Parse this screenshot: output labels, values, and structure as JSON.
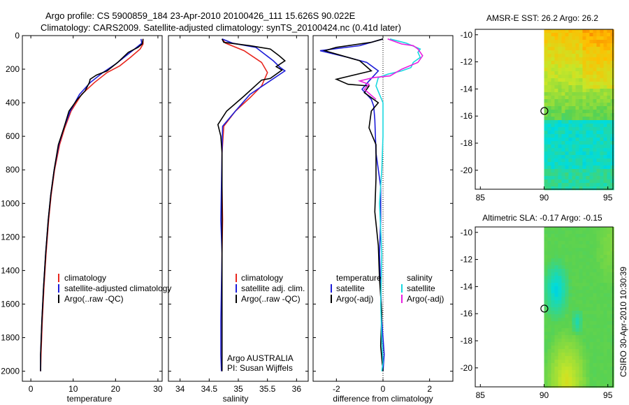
{
  "figure": {
    "title_line1": "Argo profile: CS 5900859_184 23-Apr-2010 20100426_111 15.626S 90.022E",
    "title_line2": "Climatology: CARS2009. Satellite-adjusted climatology: synTS_20100424.nc (0.41d later)",
    "side_text": "CSIRO 30-Apr-2010 10:30:39"
  },
  "colors": {
    "climatology": "#e8261e",
    "satellite": "#1c1cd8",
    "argo": "#000000",
    "sal_satellite": "#1ad8e0",
    "sal_argo": "#e81ee0"
  },
  "chart_data": [
    {
      "type": "line",
      "id": "temperature",
      "xlabel": "temperature",
      "ylabel": "",
      "xlim": [
        -2,
        31
      ],
      "ylim": [
        2060,
        0
      ],
      "xticks": [
        0,
        10,
        20,
        30
      ],
      "yticks": [
        0,
        200,
        400,
        600,
        800,
        1000,
        1200,
        1400,
        1600,
        1800,
        2000
      ],
      "legend": [
        "climatology",
        "satellite-adjusted climatology",
        "Argo(..raw -QC)"
      ],
      "series": [
        {
          "name": "climatology",
          "color_key": "climatology",
          "points": [
            [
              26.5,
              20
            ],
            [
              26.5,
              50
            ],
            [
              25.8,
              80
            ],
            [
              23.5,
              130
            ],
            [
              21,
              180
            ],
            [
              18,
              220
            ],
            [
              15,
              280
            ],
            [
              12,
              350
            ],
            [
              9.5,
              450
            ],
            [
              8,
              550
            ],
            [
              6.8,
              650
            ],
            [
              5.6,
              800
            ],
            [
              4.8,
              950
            ],
            [
              4.2,
              1100
            ],
            [
              3.6,
              1300
            ],
            [
              3.1,
              1500
            ],
            [
              2.7,
              1700
            ],
            [
              2.4,
              1900
            ],
            [
              2.3,
              2000
            ]
          ]
        },
        {
          "name": "satellite-adjusted climatology",
          "color_key": "satellite",
          "points": [
            [
              26,
              20
            ],
            [
              26.2,
              45
            ],
            [
              25,
              70
            ],
            [
              22.5,
              120
            ],
            [
              20,
              170
            ],
            [
              17,
              220
            ],
            [
              14,
              280
            ],
            [
              11.5,
              350
            ],
            [
              9.3,
              450
            ],
            [
              7.8,
              550
            ],
            [
              6.6,
              650
            ],
            [
              5.5,
              800
            ],
            [
              4.7,
              950
            ],
            [
              4.1,
              1100
            ],
            [
              3.5,
              1300
            ],
            [
              3,
              1500
            ],
            [
              2.6,
              1700
            ],
            [
              2.3,
              1900
            ],
            [
              2.3,
              2000
            ]
          ]
        },
        {
          "name": "Argo(..raw -QC)",
          "color_key": "argo",
          "points": [
            [
              26.5,
              20
            ],
            [
              26.3,
              50
            ],
            [
              25.3,
              70
            ],
            [
              23,
              100
            ],
            [
              20.5,
              160
            ],
            [
              18,
              210
            ],
            [
              15.5,
              235
            ],
            [
              14,
              260
            ],
            [
              13.8,
              280
            ],
            [
              12.8,
              330
            ],
            [
              11,
              380
            ],
            [
              9,
              450
            ],
            [
              7.8,
              550
            ],
            [
              6.5,
              650
            ],
            [
              5.5,
              800
            ],
            [
              4.7,
              950
            ],
            [
              4.1,
              1100
            ],
            [
              3.5,
              1300
            ],
            [
              3,
              1500
            ],
            [
              2.6,
              1700
            ],
            [
              2.3,
              1900
            ],
            [
              2.3,
              2000
            ]
          ]
        }
      ]
    },
    {
      "type": "line",
      "id": "salinity",
      "xlabel": "salinity",
      "ylabel": "",
      "xlim": [
        33.8,
        36.2
      ],
      "ylim": [
        2060,
        0
      ],
      "xticks": [
        34,
        34.5,
        35,
        35.5,
        36
      ],
      "legend": [
        "climatology",
        "satellite adj. clim.",
        "Argo(..raw -QC)"
      ],
      "annotation": [
        "Argo AUSTRALIA",
        "PI: Susan Wijffels"
      ],
      "series": [
        {
          "name": "climatology",
          "color_key": "climatology",
          "points": [
            [
              34.72,
              20
            ],
            [
              34.78,
              45
            ],
            [
              35.1,
              90
            ],
            [
              35.4,
              160
            ],
            [
              35.5,
              220
            ],
            [
              35.4,
              300
            ],
            [
              35.2,
              370
            ],
            [
              34.95,
              450
            ],
            [
              34.75,
              540
            ],
            [
              34.72,
              700
            ],
            [
              34.72,
              900
            ],
            [
              34.73,
              1100
            ],
            [
              34.72,
              1300
            ],
            [
              34.72,
              1500
            ],
            [
              34.72,
              1700
            ],
            [
              34.72,
              1900
            ],
            [
              34.72,
              2000
            ]
          ]
        },
        {
          "name": "satellite adj. clim.",
          "color_key": "satellite",
          "points": [
            [
              34.72,
              20
            ],
            [
              34.9,
              45
            ],
            [
              35.3,
              70
            ],
            [
              35.6,
              150
            ],
            [
              35.72,
              190
            ],
            [
              35.8,
              210
            ],
            [
              35.5,
              280
            ],
            [
              35.2,
              350
            ],
            [
              34.95,
              450
            ],
            [
              34.73,
              540
            ],
            [
              34.72,
              700
            ],
            [
              34.71,
              900
            ],
            [
              34.7,
              1100
            ],
            [
              34.72,
              1300
            ],
            [
              34.71,
              1500
            ],
            [
              34.7,
              1700
            ],
            [
              34.7,
              1900
            ],
            [
              34.71,
              2000
            ]
          ]
        },
        {
          "name": "Argo(..raw -QC)",
          "color_key": "argo",
          "points": [
            [
              34.72,
              20
            ],
            [
              34.75,
              40
            ],
            [
              35.2,
              60
            ],
            [
              35.55,
              80
            ],
            [
              35.7,
              120
            ],
            [
              35.8,
              150
            ],
            [
              35.65,
              185
            ],
            [
              35.75,
              205
            ],
            [
              35.55,
              255
            ],
            [
              35.4,
              265
            ],
            [
              35.1,
              360
            ],
            [
              34.8,
              450
            ],
            [
              34.65,
              530
            ],
            [
              34.7,
              600
            ],
            [
              34.72,
              700
            ],
            [
              34.72,
              900
            ],
            [
              34.72,
              1100
            ],
            [
              34.72,
              1300
            ],
            [
              34.72,
              1500
            ],
            [
              34.72,
              1700
            ],
            [
              34.72,
              1900
            ],
            [
              34.72,
              2000
            ]
          ]
        }
      ]
    },
    {
      "type": "line",
      "id": "difference",
      "xlabel": "difference from climatology",
      "ylabel": "",
      "xlim": [
        -3,
        3
      ],
      "ylim": [
        2060,
        0
      ],
      "xticks": [
        -2,
        0,
        2
      ],
      "legend_temperature": {
        "title": "temperature",
        "items": [
          "satellite",
          "Argo(-adj)"
        ]
      },
      "legend_salinity": {
        "title": "salinity",
        "items": [
          "satellite",
          "Argo(-adj)"
        ]
      },
      "series": [
        {
          "name": "temperature satellite",
          "color_key": "satellite",
          "points": [
            [
              0,
              20
            ],
            [
              -1,
              60
            ],
            [
              -2.7,
              90
            ],
            [
              -1.5,
              130
            ],
            [
              -0.7,
              160
            ],
            [
              -0.2,
              210
            ],
            [
              -0.6,
              270
            ],
            [
              -0.9,
              320
            ],
            [
              -0.5,
              380
            ],
            [
              -0.4,
              420
            ],
            [
              -0.35,
              500
            ],
            [
              -0.3,
              700
            ],
            [
              -0.1,
              900
            ],
            [
              -0.1,
              1100
            ],
            [
              -0.15,
              1300
            ],
            [
              -0.1,
              1500
            ],
            [
              -0.05,
              1700
            ],
            [
              0.05,
              1900
            ],
            [
              0,
              2000
            ]
          ]
        },
        {
          "name": "temperature Argo(-adj)",
          "color_key": "argo",
          "points": [
            [
              0,
              20
            ],
            [
              -0.5,
              40
            ],
            [
              -2,
              70
            ],
            [
              -2.5,
              90
            ],
            [
              -1,
              150
            ],
            [
              -0.5,
              210
            ],
            [
              -2,
              260
            ],
            [
              -1.5,
              290
            ],
            [
              -0.6,
              300
            ],
            [
              -0.8,
              340
            ],
            [
              -0.2,
              400
            ],
            [
              -0.5,
              450
            ],
            [
              -0.6,
              550
            ],
            [
              -0.3,
              650
            ],
            [
              -0.3,
              850
            ],
            [
              -0.35,
              1050
            ],
            [
              -0.2,
              1250
            ],
            [
              -0.15,
              1450
            ],
            [
              -0.05,
              1650
            ],
            [
              -0.1,
              1850
            ],
            [
              0,
              2000
            ]
          ]
        },
        {
          "name": "salinity satellite",
          "color_key": "sal_satellite",
          "points": [
            [
              0.3,
              20
            ],
            [
              1,
              45
            ],
            [
              1.6,
              80
            ],
            [
              1.5,
              100
            ],
            [
              1.6,
              130
            ],
            [
              1.3,
              160
            ],
            [
              1.2,
              190
            ],
            [
              0.8,
              210
            ],
            [
              0.2,
              230
            ],
            [
              -0.2,
              250
            ],
            [
              -0.3,
              300
            ],
            [
              0,
              400
            ],
            [
              0,
              600
            ],
            [
              -0.05,
              800
            ],
            [
              -0.15,
              1000
            ],
            [
              -0.05,
              1300
            ],
            [
              -0.1,
              1600
            ],
            [
              -0.05,
              1800
            ],
            [
              0,
              1950
            ],
            [
              -0.05,
              2000
            ]
          ]
        },
        {
          "name": "salinity Argo(-adj)",
          "color_key": "sal_argo",
          "points": [
            [
              0.2,
              20
            ],
            [
              0.8,
              50
            ],
            [
              1.3,
              60
            ],
            [
              1.5,
              80
            ],
            [
              1.7,
              120
            ],
            [
              1.5,
              160
            ],
            [
              0.8,
              200
            ],
            [
              0.3,
              240
            ],
            [
              -0.4,
              250
            ],
            [
              -1,
              270
            ],
            [
              -0.6,
              290
            ],
            [
              -0.8,
              320
            ],
            [
              -0.3,
              380
            ]
          ]
        }
      ]
    },
    {
      "type": "heatmap",
      "id": "sst_map",
      "title": "AMSR-E SST: 26.2 Argo: 26.2",
      "xticks": [
        85,
        90,
        95
      ],
      "yticks": [
        -10,
        -12,
        -14,
        -16,
        -18,
        -20
      ],
      "xlim": [
        84.6,
        95.4
      ],
      "ylim": [
        -21.4,
        -9.6
      ],
      "data_xlim": [
        90,
        95.4
      ],
      "marker": [
        90.022,
        -15.626
      ]
    },
    {
      "type": "heatmap",
      "id": "sla_map",
      "title": "Altimetric SLA: -0.17 Argo: -0.15",
      "xticks": [
        85,
        90,
        95
      ],
      "yticks": [
        -10,
        -12,
        -14,
        -16,
        -18,
        -20
      ],
      "xlim": [
        84.6,
        95.4
      ],
      "ylim": [
        -21.4,
        -9.6
      ],
      "data_xlim": [
        90,
        95.4
      ],
      "marker": [
        90.022,
        -15.626
      ]
    }
  ]
}
